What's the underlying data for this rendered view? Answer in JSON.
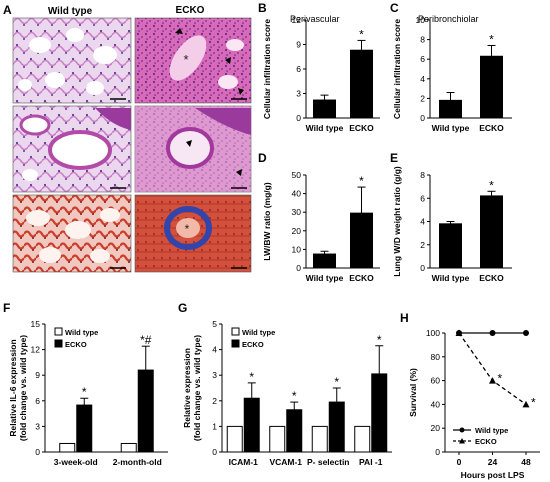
{
  "panels": {
    "A": {
      "letter": "A",
      "col_headers": [
        "Wild type",
        "ECKO"
      ],
      "marks": [
        "*",
        "*"
      ]
    },
    "B": {
      "letter": "B",
      "title": "Perivascular"
    },
    "C": {
      "letter": "C",
      "title": "Peribronchiolar"
    },
    "D": {
      "letter": "D"
    },
    "E": {
      "letter": "E"
    },
    "F": {
      "letter": "F",
      "legend": [
        "Wild type",
        "ECKO"
      ]
    },
    "G": {
      "letter": "G",
      "legend": [
        "Wild type",
        "ECKO"
      ]
    },
    "H": {
      "letter": "H",
      "legend": [
        "Wild type",
        "ECKO"
      ]
    }
  },
  "colors": {
    "he_pink": "#d86ab8",
    "he_purple": "#7a3fa0",
    "trichrome_red": "#d2503c",
    "trichrome_blue": "#3344aa",
    "bar_black": "#000000",
    "bar_white": "#ffffff"
  },
  "chart_data": [
    {
      "id": "B",
      "type": "bar",
      "title": "Perivascular",
      "categories": [
        "Wild type",
        "ECKO"
      ],
      "values": [
        2.2,
        8.3
      ],
      "errors": [
        0.6,
        1.2
      ],
      "ylabel": "Cellular infiltration score",
      "ylim": [
        0,
        12
      ],
      "yticks": [
        0,
        3,
        6,
        9,
        12
      ],
      "fills": [
        "black",
        "black"
      ],
      "sig": [
        "",
        "*"
      ]
    },
    {
      "id": "C",
      "type": "bar",
      "title": "Peribronchiolar",
      "categories": [
        "Wild type",
        "ECKO"
      ],
      "values": [
        1.8,
        6.3
      ],
      "errors": [
        0.8,
        1.1
      ],
      "ylabel": "Cellular infiltration score",
      "ylim": [
        0,
        10
      ],
      "yticks": [
        0,
        2,
        4,
        6,
        8,
        10
      ],
      "fills": [
        "black",
        "black"
      ],
      "sig": [
        "",
        "*"
      ]
    },
    {
      "id": "D",
      "type": "bar",
      "categories": [
        "Wild type",
        "ECKO"
      ],
      "values": [
        7.5,
        29.5
      ],
      "errors": [
        1.5,
        14
      ],
      "ylabel": "LW/BW ratio (mg/g)",
      "ylim": [
        0,
        50
      ],
      "yticks": [
        0,
        10,
        20,
        30,
        40,
        50
      ],
      "fills": [
        "black",
        "black"
      ],
      "sig": [
        "",
        "*"
      ]
    },
    {
      "id": "E",
      "type": "bar",
      "categories": [
        "Wild type",
        "ECKO"
      ],
      "values": [
        3.8,
        6.2
      ],
      "errors": [
        0.2,
        0.4
      ],
      "ylabel": "Lung W/D weight ratio (g/g)",
      "ylim": [
        0,
        8
      ],
      "yticks": [
        0,
        2,
        4,
        6,
        8
      ],
      "fills": [
        "black",
        "black"
      ],
      "sig": [
        "",
        "*"
      ]
    },
    {
      "id": "F",
      "type": "bar",
      "categories": [
        "3-week-old",
        "2-month-old"
      ],
      "series": [
        {
          "name": "Wild type",
          "values": [
            1,
            1
          ],
          "errors": [
            0,
            0
          ],
          "fill": "white",
          "sig": [
            "",
            ""
          ]
        },
        {
          "name": "ECKO",
          "values": [
            5.5,
            9.6
          ],
          "errors": [
            0.8,
            2.8
          ],
          "fill": "black",
          "sig": [
            "*",
            "*#"
          ]
        }
      ],
      "ylabel": "Relative IL-6 expression\n(fold change vs. wild type)",
      "ylim": [
        0,
        15
      ],
      "yticks": [
        0,
        3,
        6,
        9,
        12,
        15
      ],
      "legend": "top-left"
    },
    {
      "id": "G",
      "type": "bar",
      "categories": [
        "ICAM-1",
        "VCAM-1",
        "P- selectin",
        "PAI -1"
      ],
      "series": [
        {
          "name": "Wild type",
          "values": [
            1,
            1,
            1,
            1
          ],
          "errors": [
            0,
            0,
            0,
            0
          ],
          "fill": "white",
          "sig": [
            "",
            "",
            "",
            ""
          ]
        },
        {
          "name": "ECKO",
          "values": [
            2.1,
            1.65,
            1.95,
            3.05
          ],
          "errors": [
            0.6,
            0.3,
            0.55,
            1.1
          ],
          "fill": "black",
          "sig": [
            "*",
            "*",
            "*",
            "*"
          ]
        }
      ],
      "ylabel": "Relative expression\n(fold change vs. wild type)",
      "ylim": [
        0,
        5
      ],
      "yticks": [
        0,
        1,
        2,
        3,
        4,
        5
      ],
      "legend": "top-left"
    },
    {
      "id": "H",
      "type": "line",
      "x": [
        0,
        24,
        48
      ],
      "xticks": [
        0,
        24,
        48
      ],
      "series": [
        {
          "name": "Wild type",
          "values": [
            100,
            100,
            100
          ],
          "marker": "circle",
          "dash": false,
          "sig": [
            "",
            "",
            ""
          ]
        },
        {
          "name": "ECKO",
          "values": [
            100,
            60,
            40
          ],
          "marker": "triangle",
          "dash": true,
          "sig": [
            "",
            "*",
            "*"
          ]
        }
      ],
      "xlabel": "Hours post LPS",
      "ylabel": "Survival (%)",
      "ylim": [
        0,
        100
      ],
      "yticks": [
        0,
        20,
        40,
        60,
        80,
        100
      ],
      "legend": "bottom-left"
    }
  ]
}
